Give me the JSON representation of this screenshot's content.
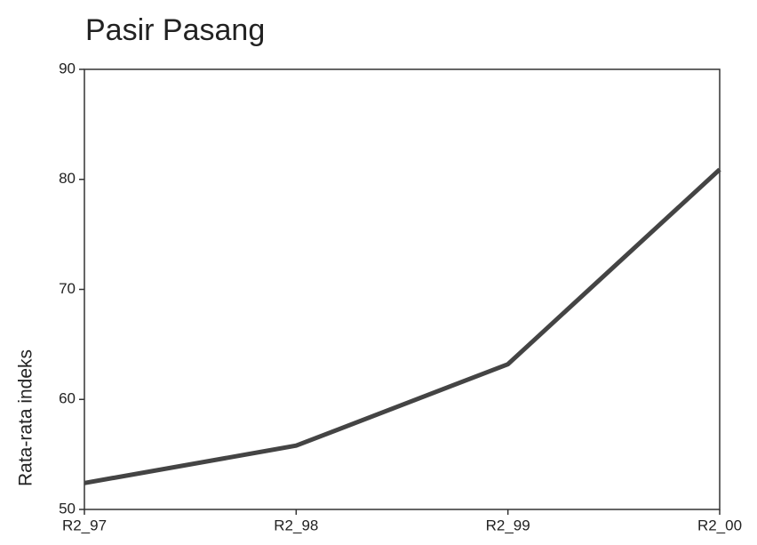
{
  "chart_data": {
    "type": "line",
    "title": "Pasir Pasang",
    "y_label": "Rata-rata indeks",
    "categories": [
      "R2_97",
      "R2_98",
      "R2_99",
      "R2_00"
    ],
    "values": [
      52.4,
      55.8,
      63.2,
      80.9
    ],
    "color": "#444444",
    "ylim": [
      50,
      90
    ],
    "yticks": [
      50,
      60,
      70,
      80,
      90
    ]
  }
}
